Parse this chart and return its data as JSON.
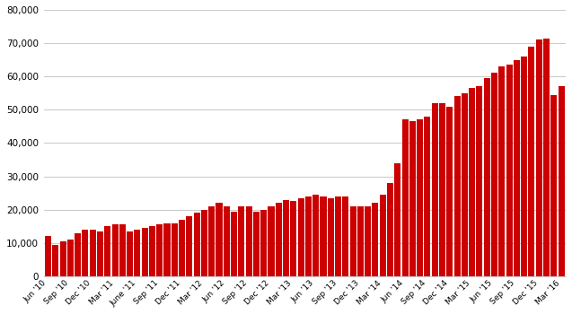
{
  "bar_color": "#cc0000",
  "background_color": "#ffffff",
  "grid_color": "#cccccc",
  "ylim": [
    0,
    80000
  ],
  "yticks": [
    0,
    10000,
    20000,
    30000,
    40000,
    50000,
    60000,
    70000,
    80000
  ],
  "values": [
    12000,
    9500,
    10500,
    11000,
    13000,
    14000,
    14000,
    13500,
    15000,
    15500,
    15500,
    13500,
    14000,
    14500,
    15000,
    15500,
    16000,
    16000,
    17000,
    18000,
    19000,
    20000,
    21000,
    22000,
    21000,
    19500,
    21000,
    21000,
    19500,
    20000,
    21000,
    22000,
    23000,
    22500,
    23500,
    24000,
    24500,
    24000,
    23500,
    24000,
    24000,
    21000,
    21000,
    21000,
    22000,
    24500,
    28000,
    34000,
    47000,
    46500,
    47000,
    48000,
    52000,
    52000,
    51000,
    54000,
    55000,
    56500,
    57000,
    59500,
    61000,
    63000,
    63500,
    65000,
    66000,
    69000,
    71000,
    71500,
    54500,
    57000
  ],
  "quarterly_label_indices": [
    0,
    3,
    6,
    9,
    12,
    15,
    18,
    21,
    24,
    27,
    30,
    33,
    36,
    39,
    42,
    45,
    48,
    51,
    54,
    57,
    60,
    63,
    66,
    69
  ],
  "quarterly_labels": [
    "Jun '10",
    "Sep '10",
    "Dec '10",
    "Mar '11",
    "June '11",
    "Sep '11",
    "Dec '11",
    "Mar '12",
    "Jun '12",
    "Sep '12",
    "Dec '12",
    "Mar '13",
    "Jun '13",
    "Sep '13",
    "Dec '13",
    "Mar '14",
    "Jun '14",
    "Sep '14",
    "Dec '14",
    "Mar '15",
    "Jun '15",
    "Sep '15",
    "Dec '15",
    "Mar '16"
  ]
}
